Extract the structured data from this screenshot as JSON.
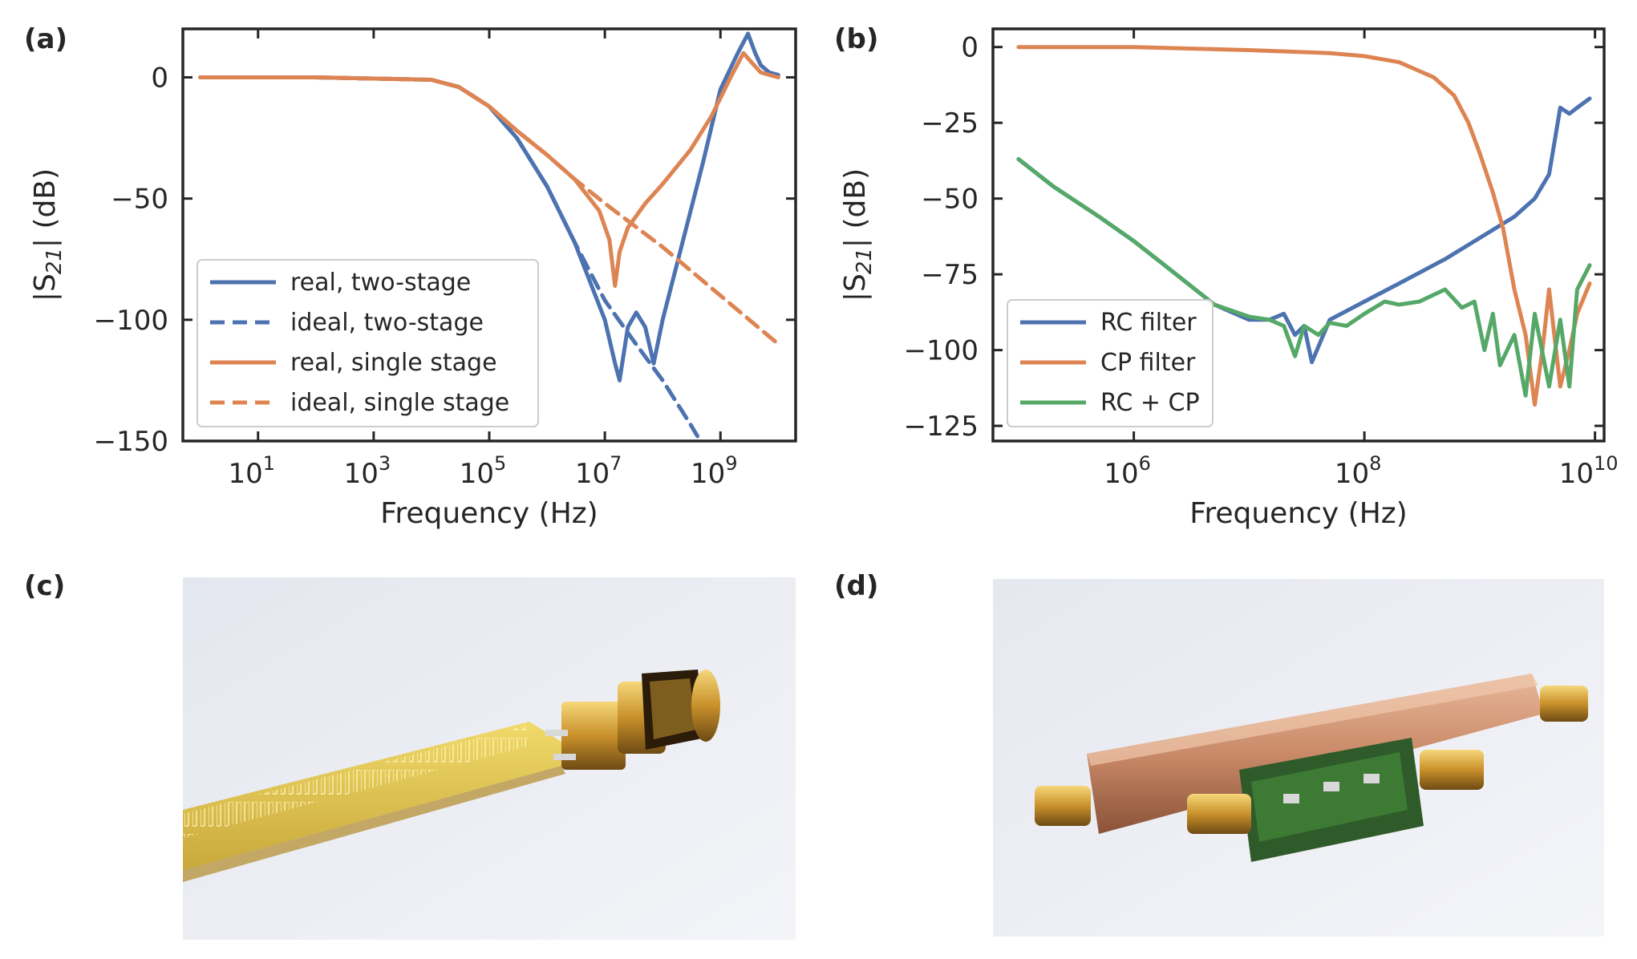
{
  "panels": {
    "a": "(a)",
    "b": "(b)",
    "c": "(c)",
    "d": "(d)"
  },
  "colors": {
    "blue": "#4c72b0",
    "orange": "#dd8452",
    "green": "#55a868"
  },
  "chart_data": [
    {
      "type": "line",
      "panel": "(a)",
      "xlabel": "Frequency (Hz)",
      "ylabel_main": "|S",
      "ylabel_sub": "21",
      "ylabel_tail": "| (dB)",
      "xscale": "log",
      "xlim": [
        0.5,
        20000000000.0
      ],
      "ylim": [
        -150,
        20
      ],
      "xticks": [
        {
          "value": 10,
          "base": "10",
          "exp": "1"
        },
        {
          "value": 1000,
          "base": "10",
          "exp": "3"
        },
        {
          "value": 100000,
          "base": "10",
          "exp": "5"
        },
        {
          "value": 10000000,
          "base": "10",
          "exp": "7"
        },
        {
          "value": 1000000000,
          "base": "10",
          "exp": "9"
        }
      ],
      "yticks": [
        {
          "value": 0,
          "label": "0"
        },
        {
          "value": -50,
          "label": "−50"
        },
        {
          "value": -100,
          "label": "−100"
        },
        {
          "value": -150,
          "label": "−150"
        }
      ],
      "legend_position": "lower-left",
      "series": [
        {
          "name": "real, two-stage",
          "color": "blue",
          "dash": false,
          "x": [
            1,
            100,
            10000,
            30000,
            100000,
            300000,
            1000000,
            3000000,
            10000000,
            15000000,
            18000000,
            25000000,
            35000000,
            50000000,
            70000000,
            100000000,
            200000000,
            500000000,
            1000000000,
            2000000000,
            3000000000,
            4000000000,
            5000000000,
            7000000000,
            10000000000
          ],
          "y": [
            0,
            0,
            -1,
            -4,
            -12,
            -25,
            -45,
            -68,
            -100,
            -118,
            -125,
            -103,
            -97,
            -103,
            -118,
            -100,
            -72,
            -35,
            -5,
            10,
            18,
            10,
            5,
            2,
            1
          ]
        },
        {
          "name": "ideal, two-stage",
          "color": "blue",
          "dash": true,
          "x": [
            1,
            100,
            10000,
            30000,
            100000,
            300000,
            1000000,
            3000000,
            10000000,
            30000000,
            100000000,
            300000000,
            400000000
          ],
          "y": [
            0,
            0,
            -1,
            -4,
            -12,
            -25,
            -45,
            -68,
            -92,
            -108,
            -125,
            -143,
            -148
          ]
        },
        {
          "name": "real, single stage",
          "color": "orange",
          "dash": false,
          "x": [
            1,
            100,
            10000,
            30000,
            100000,
            300000,
            1000000,
            3000000,
            8000000,
            12000000,
            15000000,
            18000000,
            25000000,
            50000000,
            100000000,
            300000000,
            700000000,
            1500000000,
            2500000000,
            3500000000,
            5000000000,
            7000000000,
            10000000000
          ],
          "y": [
            0,
            0,
            -1,
            -4,
            -12,
            -22,
            -32,
            -42,
            -55,
            -67,
            -86,
            -72,
            -62,
            -52,
            -44,
            -30,
            -16,
            0,
            10,
            6,
            2,
            1,
            0
          ]
        },
        {
          "name": "ideal, single stage",
          "color": "orange",
          "dash": true,
          "x": [
            1,
            100,
            10000,
            30000,
            100000,
            300000,
            1000000,
            3000000,
            10000000,
            100000000,
            1000000000,
            10000000000
          ],
          "y": [
            0,
            0,
            -1,
            -4,
            -12,
            -22,
            -32,
            -42,
            -52,
            -70,
            -90,
            -110
          ]
        }
      ]
    },
    {
      "type": "line",
      "panel": "(b)",
      "xlabel": "Frequency (Hz)",
      "ylabel_main": "|S",
      "ylabel_sub": "21",
      "ylabel_tail": "| (dB)",
      "xscale": "log",
      "xlim": [
        60000,
        12000000000
      ],
      "ylim": [
        -130,
        6
      ],
      "xticks": [
        {
          "value": 1000000,
          "base": "10",
          "exp": "6"
        },
        {
          "value": 100000000,
          "base": "10",
          "exp": "8"
        },
        {
          "value": 10000000000,
          "base": "10",
          "exp": "10"
        }
      ],
      "yticks": [
        {
          "value": 0,
          "label": "0"
        },
        {
          "value": -25,
          "label": "−25"
        },
        {
          "value": -50,
          "label": "−50"
        },
        {
          "value": -75,
          "label": "−75"
        },
        {
          "value": -100,
          "label": "−100"
        },
        {
          "value": -125,
          "label": "−125"
        }
      ],
      "legend_position": "lower-left",
      "series": [
        {
          "name": "RC filter",
          "color": "blue",
          "dash": false,
          "x": [
            100000,
            200000,
            500000,
            1000000,
            2000000,
            5000000,
            10000000,
            15000000,
            20000000,
            25000000,
            30000000,
            35000000,
            50000000,
            100000000,
            200000000,
            500000000,
            1000000000,
            2000000000,
            3000000000,
            4000000000,
            5000000000,
            6000000000,
            7000000000,
            9000000000
          ],
          "y": [
            -37,
            -46,
            -56,
            -64,
            -73,
            -85,
            -90,
            -90,
            -88,
            -95,
            -92,
            -104,
            -90,
            -84,
            -78,
            -70,
            -63,
            -56,
            -50,
            -42,
            -20,
            -22,
            -20,
            -17
          ]
        },
        {
          "name": "CP filter",
          "color": "orange",
          "dash": false,
          "x": [
            100000,
            1000000,
            10000000,
            50000000,
            100000000,
            200000000,
            400000000,
            600000000,
            800000000,
            1000000000,
            1300000000,
            1600000000,
            2000000000,
            2500000000,
            3000000000,
            3500000000,
            4000000000,
            5000000000,
            6000000000,
            7000000000,
            9000000000
          ],
          "y": [
            0,
            0,
            -1,
            -2,
            -3,
            -5,
            -10,
            -16,
            -25,
            -35,
            -48,
            -60,
            -80,
            -95,
            -118,
            -100,
            -80,
            -112,
            -100,
            -88,
            -78
          ]
        },
        {
          "name": "RC + CP",
          "color": "green",
          "dash": false,
          "x": [
            100000,
            200000,
            500000,
            1000000,
            2000000,
            5000000,
            10000000,
            15000000,
            20000000,
            25000000,
            30000000,
            40000000,
            50000000,
            70000000,
            100000000,
            150000000,
            200000000,
            300000000,
            500000000,
            700000000,
            900000000,
            1100000000,
            1300000000,
            1500000000,
            2000000000,
            2500000000,
            3000000000,
            4000000000,
            5000000000,
            6000000000,
            7000000000,
            9000000000
          ],
          "y": [
            -37,
            -46,
            -56,
            -64,
            -73,
            -85,
            -89,
            -90,
            -92,
            -102,
            -92,
            -95,
            -91,
            -92,
            -88,
            -84,
            -85,
            -84,
            -80,
            -86,
            -84,
            -100,
            -88,
            -105,
            -95,
            -115,
            -88,
            -112,
            -90,
            -112,
            -80,
            -72
          ]
        }
      ]
    }
  ]
}
